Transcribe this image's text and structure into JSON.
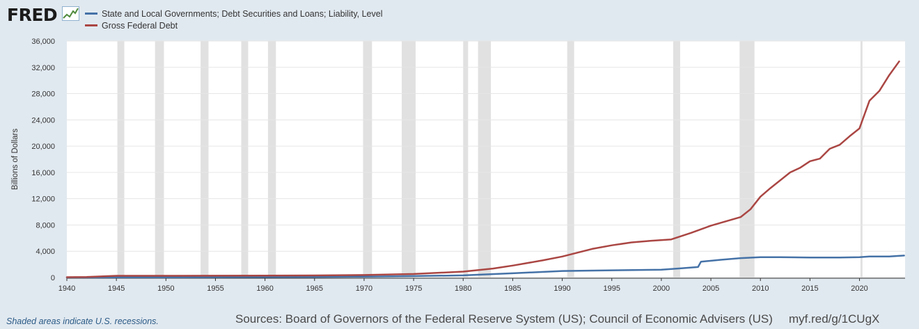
{
  "brand": {
    "logo_text": "FRED",
    "logo_icon": "line-chart-icon"
  },
  "colors": {
    "background": "#e1e9f0",
    "plot_bg": "#ffffff",
    "recession": "#e1e1e1",
    "series_state_local": "#4572a7",
    "series_federal": "#aa4643"
  },
  "chart_data": {
    "type": "line",
    "ylabel": "Billions of Dollars",
    "xlim": [
      1940,
      2024.6
    ],
    "ylim": [
      0,
      36000
    ],
    "y_ticks": [
      0,
      4000,
      8000,
      12000,
      16000,
      20000,
      24000,
      28000,
      32000,
      36000
    ],
    "y_tick_labels": [
      "0",
      "4,000",
      "8,000",
      "12,000",
      "16,000",
      "20,000",
      "24,000",
      "28,000",
      "32,000",
      "36,000"
    ],
    "x_ticks": [
      1940,
      1945,
      1950,
      1955,
      1960,
      1965,
      1970,
      1975,
      1980,
      1985,
      1990,
      1995,
      2000,
      2005,
      2010,
      2015,
      2020
    ],
    "x_tick_labels": [
      "1940",
      "1945",
      "1950",
      "1955",
      "1960",
      "1965",
      "1970",
      "1975",
      "1980",
      "1985",
      "1990",
      "1995",
      "2000",
      "2005",
      "2010",
      "2015",
      "2020"
    ],
    "grid": true,
    "legend_position": "top-left",
    "recessions": [
      [
        1945.1,
        1945.8
      ],
      [
        1948.9,
        1949.8
      ],
      [
        1953.5,
        1954.3
      ],
      [
        1957.6,
        1958.3
      ],
      [
        1960.3,
        1961.1
      ],
      [
        1969.9,
        1970.8
      ],
      [
        1973.8,
        1975.2
      ],
      [
        1980.0,
        1980.5
      ],
      [
        1981.5,
        1982.8
      ],
      [
        1990.5,
        1991.2
      ],
      [
        2001.2,
        2001.9
      ],
      [
        2007.9,
        2009.4
      ],
      [
        2020.1,
        2020.3
      ]
    ],
    "series": [
      {
        "name": "State and Local Governments; Debt Securities and Loans; Liability, Level",
        "color": "#4572a7",
        "x": [
          1940,
          1945,
          1950,
          1955,
          1960,
          1965,
          1970,
          1975,
          1980,
          1985,
          1990,
          1995,
          2000,
          2002,
          2003.7,
          2004,
          2006,
          2008,
          2010,
          2012,
          2015,
          2018,
          2020,
          2021,
          2023,
          2024.5
        ],
        "y": [
          20,
          16,
          25,
          50,
          70,
          100,
          140,
          220,
          330,
          650,
          1000,
          1100,
          1200,
          1400,
          1600,
          2400,
          2700,
          2950,
          3100,
          3100,
          3050,
          3050,
          3100,
          3200,
          3200,
          3350
        ]
      },
      {
        "name": "Gross Federal Debt",
        "color": "#aa4643",
        "x": [
          1940,
          1942,
          1945,
          1950,
          1955,
          1960,
          1965,
          1970,
          1975,
          1980,
          1983,
          1985,
          1988,
          1990,
          1993,
          1995,
          1997,
          1999,
          2001,
          2003,
          2005,
          2008,
          2009,
          2010,
          2011,
          2013,
          2014,
          2015,
          2016,
          2017,
          2018,
          2019,
          2020,
          2021,
          2022,
          2023,
          2024
        ],
        "y": [
          50,
          80,
          260,
          260,
          280,
          290,
          320,
          380,
          540,
          900,
          1370,
          1820,
          2600,
          3200,
          4350,
          4900,
          5350,
          5600,
          5800,
          6800,
          7900,
          9200,
          10400,
          12300,
          13600,
          16000,
          16700,
          17700,
          18100,
          19600,
          20200,
          21500,
          22700,
          26900,
          28400,
          30800,
          32900
        ]
      }
    ]
  },
  "footer": {
    "note": "Shaded areas indicate U.S. recessions.",
    "sources": "Sources: Board of Governors of the Federal Reserve System (US); Council of Economic Advisers (US)",
    "link": "myf.red/g/1CUgX"
  }
}
